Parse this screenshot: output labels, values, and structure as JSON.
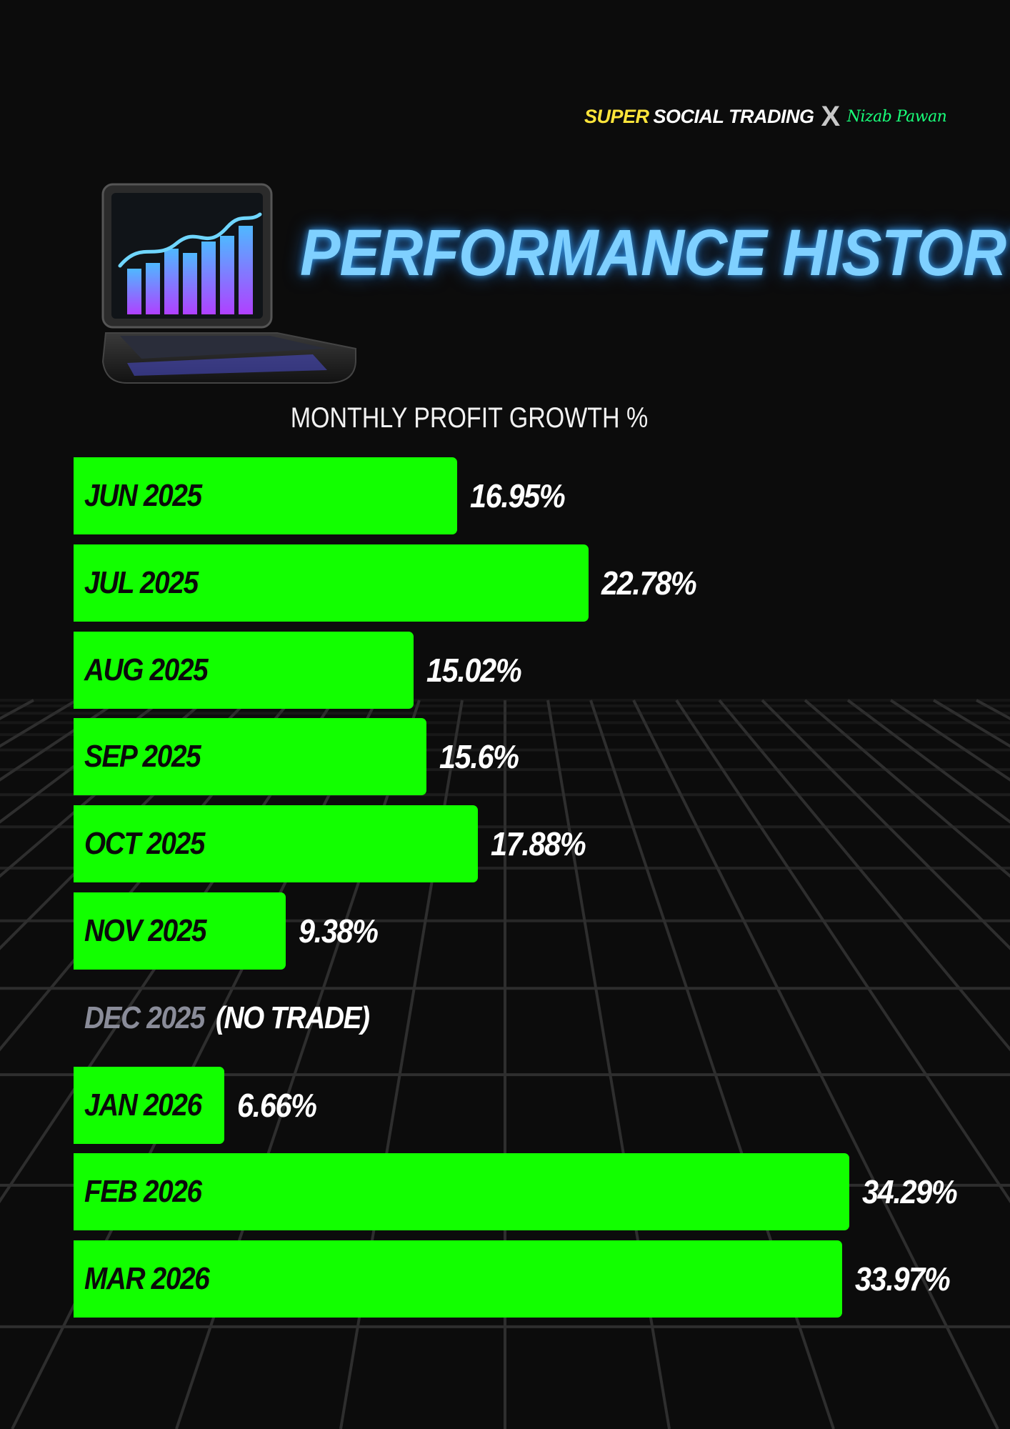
{
  "brand": {
    "super": "SUPER",
    "social_trading": "SOCIAL TRADING",
    "x": "X",
    "signature": "Nizab Pawan"
  },
  "title": "PERFORMANCE HISTORY",
  "colors": {
    "bar": "#12ff00",
    "title": "#7fd0ff",
    "background": "#0c0c0c",
    "brand_super": "#ffe53a",
    "signature": "#19ff7a",
    "no_trade_month": "#8a8c99"
  },
  "chart_data": {
    "type": "bar",
    "orientation": "horizontal",
    "title": "MONTHLY PROFIT GROWTH %",
    "unit": "%",
    "categories": [
      "JUN 2025",
      "JUL 2025",
      "AUG 2025",
      "SEP 2025",
      "OCT 2025",
      "NOV 2025",
      "DEC 2025",
      "JAN 2026",
      "FEB 2026",
      "MAR 2026"
    ],
    "values": [
      16.95,
      22.78,
      15.02,
      15.6,
      17.88,
      9.38,
      null,
      6.66,
      34.29,
      33.97
    ],
    "value_labels": [
      "16.95%",
      "22.78%",
      "15.02%",
      "15.6%",
      "17.88%",
      "9.38%",
      "",
      "6.66%",
      "34.29%",
      "33.97%"
    ],
    "no_trade": {
      "month": "DEC 2025",
      "note": "(NO TRADE)"
    },
    "xlim": [
      0,
      34.29
    ],
    "grid": false
  }
}
